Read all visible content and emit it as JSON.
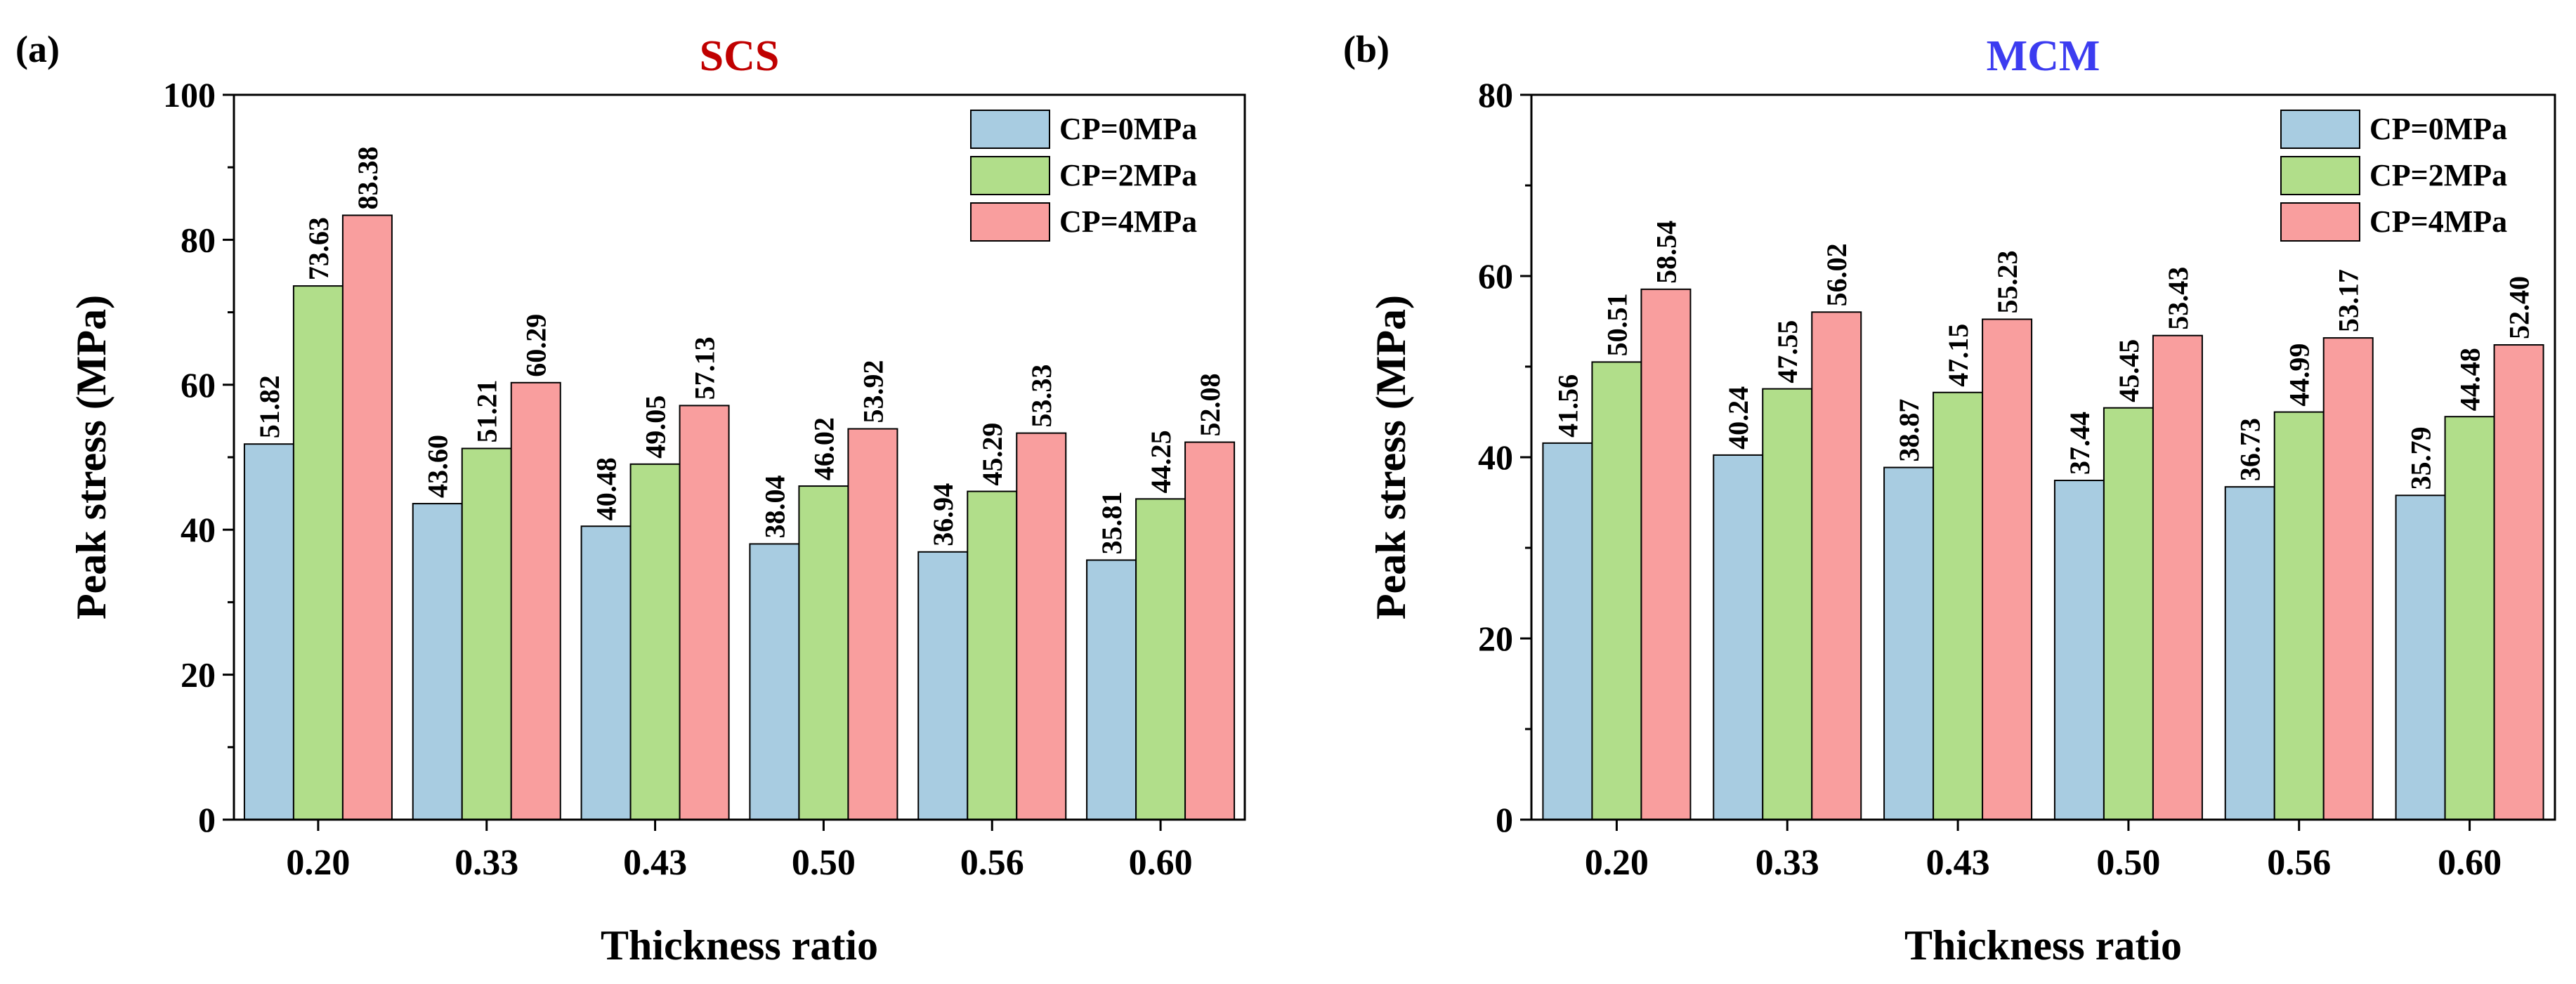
{
  "chart_data": [
    {
      "panel_label": "(a)",
      "type": "bar",
      "title": "SCS",
      "title_color": "#c00000",
      "xlabel": "Thickness ratio",
      "ylabel": "Peak stress (MPa)",
      "ylim": [
        0,
        100
      ],
      "yticks": [
        0,
        20,
        40,
        60,
        80,
        100
      ],
      "categories": [
        "0.20",
        "0.33",
        "0.43",
        "0.50",
        "0.56",
        "0.60"
      ],
      "legend_position": "top-right",
      "series": [
        {
          "name": "CP=0MPa",
          "color": "#a8cce1",
          "values": [
            51.82,
            43.6,
            40.48,
            38.04,
            36.94,
            35.81
          ],
          "labels": [
            "51.82",
            "43.60",
            "40.48",
            "38.04",
            "36.94",
            "35.81"
          ]
        },
        {
          "name": "CP=2MPa",
          "color": "#b1de8a",
          "values": [
            73.63,
            51.21,
            49.05,
            46.02,
            45.29,
            44.25
          ],
          "labels": [
            "73.63",
            "51.21",
            "49.05",
            "46.02",
            "45.29",
            "44.25"
          ]
        },
        {
          "name": "CP=4MPa",
          "color": "#f99e9e",
          "values": [
            83.38,
            60.29,
            57.13,
            53.92,
            53.33,
            52.08
          ],
          "labels": [
            "83.38",
            "60.29",
            "57.13",
            "53.92",
            "53.33",
            "52.08"
          ]
        }
      ]
    },
    {
      "panel_label": "(b)",
      "type": "bar",
      "title": "MCM",
      "title_color": "#3c3cf0",
      "xlabel": "Thickness ratio",
      "ylabel": "Peak stress (MPa)",
      "ylim": [
        0,
        80
      ],
      "yticks": [
        0,
        20,
        40,
        60,
        80
      ],
      "categories": [
        "0.20",
        "0.33",
        "0.43",
        "0.50",
        "0.56",
        "0.60"
      ],
      "legend_position": "top-right",
      "series": [
        {
          "name": "CP=0MPa",
          "color": "#a8cce1",
          "values": [
            41.56,
            40.24,
            38.87,
            37.44,
            36.73,
            35.79
          ],
          "labels": [
            "41.56",
            "40.24",
            "38.87",
            "37.44",
            "36.73",
            "35.79"
          ]
        },
        {
          "name": "CP=2MPa",
          "color": "#b1de8a",
          "values": [
            50.51,
            47.55,
            47.15,
            45.45,
            44.99,
            44.48
          ],
          "labels": [
            "50.51",
            "47.55",
            "47.15",
            "45.45",
            "44.99",
            "44.48"
          ]
        },
        {
          "name": "CP=4MPa",
          "color": "#f99e9e",
          "values": [
            58.54,
            56.02,
            55.23,
            53.43,
            53.17,
            52.4
          ],
          "labels": [
            "58.54",
            "56.02",
            "55.23",
            "53.43",
            "53.17",
            "52.40"
          ]
        }
      ]
    }
  ]
}
